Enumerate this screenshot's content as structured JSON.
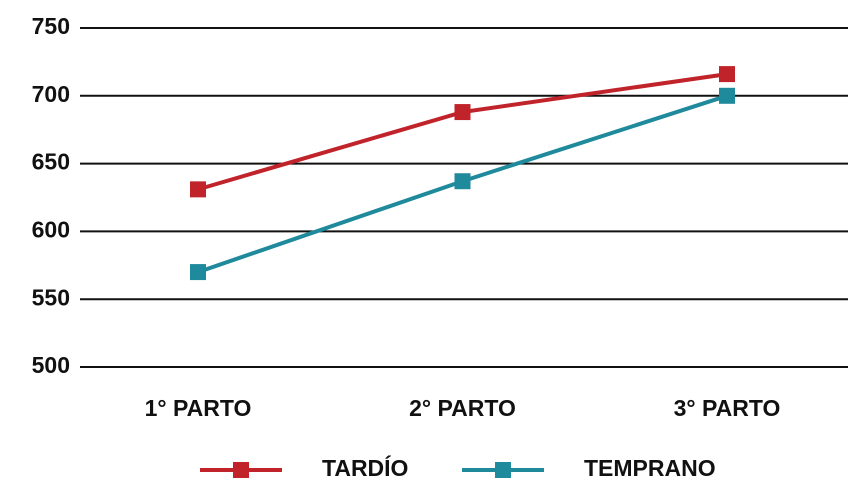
{
  "chart_data": {
    "type": "line",
    "categories": [
      "1° PARTO",
      "2° PARTO",
      "3° PARTO"
    ],
    "series": [
      {
        "name": "TARDÍO",
        "color": "#c1232b",
        "values": [
          631,
          688,
          716
        ]
      },
      {
        "name": "TEMPRANO",
        "color": "#1f8a9c",
        "values": [
          570,
          637,
          700
        ]
      }
    ],
    "ylim": [
      500,
      750
    ],
    "yticks": [
      500,
      550,
      600,
      650,
      700,
      750
    ],
    "grid": true,
    "legend": "bottom"
  }
}
